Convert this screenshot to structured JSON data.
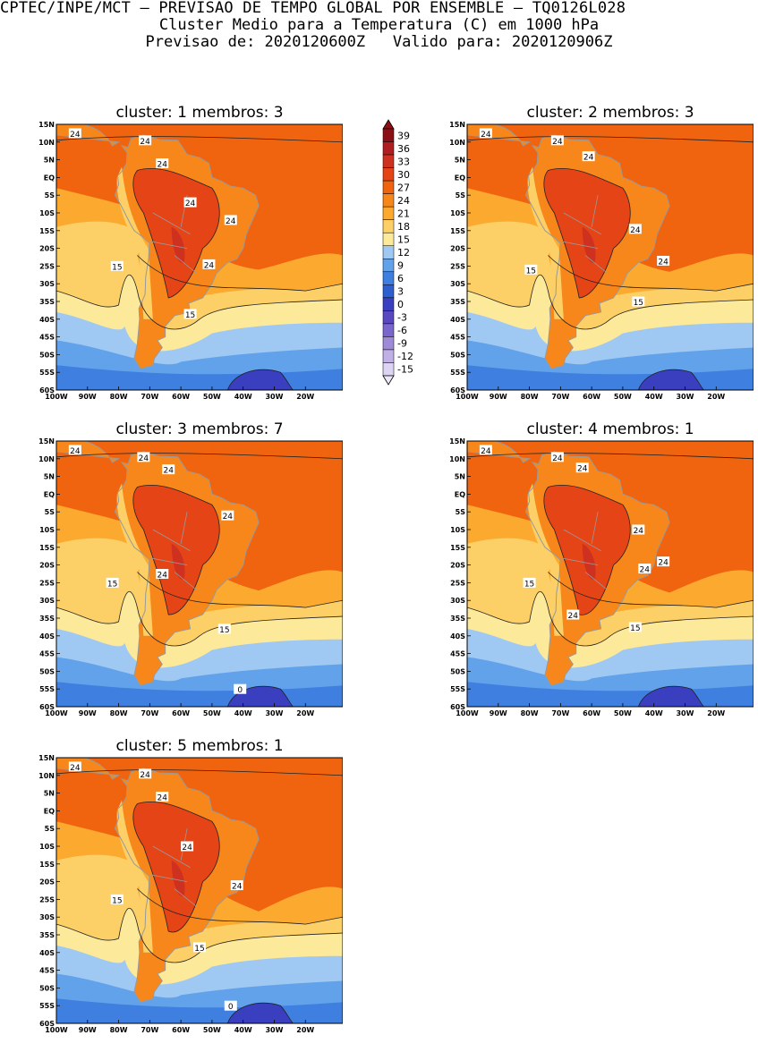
{
  "header": {
    "line1": "CPTEC/INPE/MCT – PREVISAO DE TEMPO GLOBAL POR ENSEMBLE – TQ0126L028",
    "line2": "Cluster Medio para a Temperatura (C) em 1000 hPa",
    "line3": "Previsao de: 2020120600Z   Valido para: 2020120906Z"
  },
  "colorbar": {
    "labels": [
      "39",
      "36",
      "33",
      "30",
      "27",
      "24",
      "21",
      "18",
      "15",
      "12",
      "9",
      "6",
      "3",
      "0",
      "-3",
      "-6",
      "-9",
      "-12",
      "-15"
    ],
    "colors": [
      "#8b0f14",
      "#b01e23",
      "#cf3120",
      "#e54417",
      "#f0640f",
      "#f7871a",
      "#fbaa2f",
      "#fdd067",
      "#fde99a",
      "#9fc9f3",
      "#62a2ea",
      "#3e7fe0",
      "#2e5fd0",
      "#3a3fbf",
      "#5948c0",
      "#7a66cc",
      "#9e8ad8",
      "#c0b0e6",
      "#dcd4f2"
    ]
  },
  "axes": {
    "lat_labels": [
      "15N",
      "10N",
      "5N",
      "EQ",
      "5S",
      "10S",
      "15S",
      "20S",
      "25S",
      "30S",
      "35S",
      "40S",
      "45S",
      "50S",
      "55S",
      "60S"
    ],
    "lon_labels": [
      "100W",
      "90W",
      "80W",
      "70W",
      "60W",
      "50W",
      "40W",
      "30W",
      "20W"
    ]
  },
  "panels": [
    {
      "cluster_label": "cluster:",
      "cluster": "1",
      "members_label": "membros:",
      "members": "3",
      "contour_labels": [
        {
          "text": "24"
        },
        {
          "text": "24"
        },
        {
          "text": "24"
        },
        {
          "text": "24"
        },
        {
          "text": "24"
        },
        {
          "text": "15"
        },
        {
          "text": "24"
        },
        {
          "text": "15"
        }
      ]
    },
    {
      "cluster_label": "cluster:",
      "cluster": "2",
      "members_label": "membros:",
      "members": "3",
      "contour_labels": [
        {
          "text": "24"
        },
        {
          "text": "24"
        },
        {
          "text": "24"
        },
        {
          "text": "24"
        },
        {
          "text": "24"
        },
        {
          "text": "15"
        },
        {
          "text": "15"
        }
      ]
    },
    {
      "cluster_label": "cluster:",
      "cluster": "3",
      "members_label": "membros:",
      "members": "7",
      "contour_labels": [
        {
          "text": "24"
        },
        {
          "text": "24"
        },
        {
          "text": "24"
        },
        {
          "text": "24"
        },
        {
          "text": "15"
        },
        {
          "text": "24"
        },
        {
          "text": "15"
        },
        {
          "text": "0"
        }
      ]
    },
    {
      "cluster_label": "cluster:",
      "cluster": "4",
      "members_label": "membros:",
      "members": "1",
      "contour_labels": [
        {
          "text": "24"
        },
        {
          "text": "24"
        },
        {
          "text": "24"
        },
        {
          "text": "24"
        },
        {
          "text": "24"
        },
        {
          "text": "15"
        },
        {
          "text": "24"
        },
        {
          "text": "24"
        },
        {
          "text": "15"
        }
      ]
    },
    {
      "cluster_label": "cluster:",
      "cluster": "5",
      "members_label": "membros:",
      "members": "1",
      "contour_labels": [
        {
          "text": "24"
        },
        {
          "text": "24"
        },
        {
          "text": "24"
        },
        {
          "text": "24"
        },
        {
          "text": "15"
        },
        {
          "text": "24"
        },
        {
          "text": "15"
        },
        {
          "text": "0"
        }
      ]
    }
  ]
}
